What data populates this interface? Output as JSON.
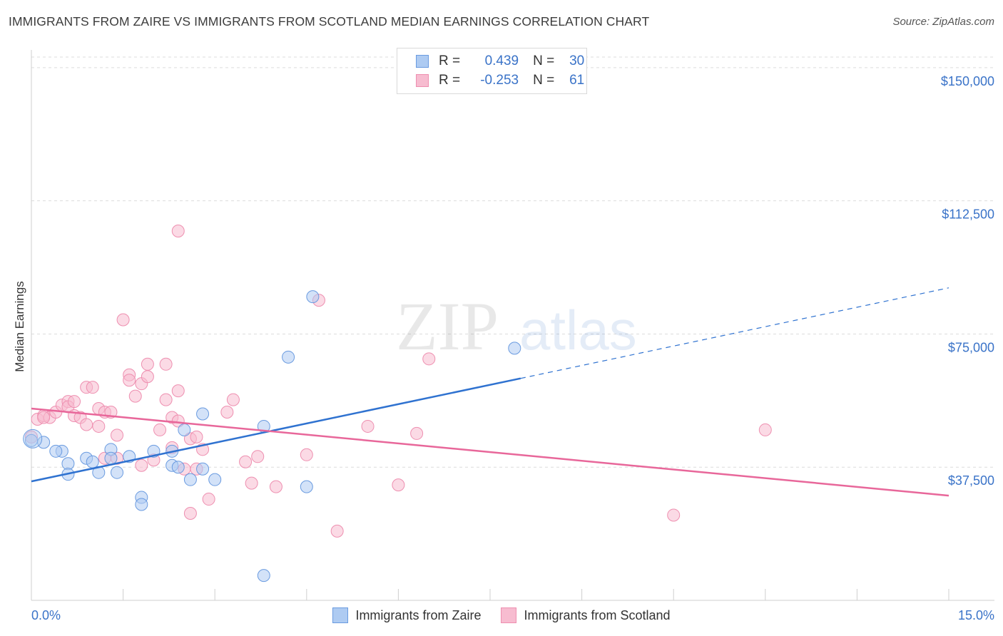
{
  "header": {
    "title": "IMMIGRANTS FROM ZAIRE VS IMMIGRANTS FROM SCOTLAND MEDIAN EARNINGS CORRELATION CHART",
    "source": "Source: ZipAtlas.com"
  },
  "watermark": {
    "zip": "ZIP",
    "atlas": "atlas"
  },
  "legend": {
    "zaire": {
      "r_label": "R =",
      "r_value": "0.439",
      "n_label": "N =",
      "n_value": "30"
    },
    "scotland": {
      "r_label": "R =",
      "r_value": "-0.253",
      "n_label": "N =",
      "n_value": "61"
    }
  },
  "colors": {
    "zaire_fill": "#aecbf2",
    "zaire_stroke": "#6a9be0",
    "zaire_line": "#2f72d0",
    "scotland_fill": "#f7bcd0",
    "scotland_stroke": "#ee8fb0",
    "scotland_line": "#e8679a",
    "grid": "#dcdcdc",
    "tick_label": "#3a73c8"
  },
  "chart_data": {
    "type": "scatter",
    "title": "IMMIGRANTS FROM ZAIRE VS IMMIGRANTS FROM SCOTLAND MEDIAN EARNINGS CORRELATION CHART",
    "xlabel": "",
    "ylabel": "Median Earnings",
    "xlim": [
      0,
      15
    ],
    "ylim": [
      0,
      155000
    ],
    "x_tick_labels": {
      "left": "0.0%",
      "right": "15.0%"
    },
    "y_ticks": [
      37500,
      75000,
      112500,
      150000
    ],
    "y_tick_labels": [
      "$37,500",
      "$75,000",
      "$112,500",
      "$150,000"
    ],
    "series": [
      {
        "name": "Immigrants from Zaire",
        "r": 0.439,
        "n": 30,
        "trend": {
          "x0": 0,
          "y0": 33500,
          "x1": 8,
          "y1": 62500,
          "x_end": 15,
          "y_end": 88000
        },
        "points": [
          [
            0.0,
            45000
          ],
          [
            0.5,
            42000
          ],
          [
            0.6,
            38500
          ],
          [
            0.9,
            40000
          ],
          [
            1.0,
            39000
          ],
          [
            0.4,
            42000
          ],
          [
            1.1,
            36000
          ],
          [
            0.6,
            35500
          ],
          [
            1.3,
            42500
          ],
          [
            1.3,
            40000
          ],
          [
            1.4,
            36000
          ],
          [
            1.6,
            40500
          ],
          [
            1.8,
            29000
          ],
          [
            1.8,
            27000
          ],
          [
            2.0,
            42000
          ],
          [
            2.3,
            42000
          ],
          [
            2.3,
            38000
          ],
          [
            2.4,
            37500
          ],
          [
            2.5,
            48000
          ],
          [
            2.6,
            34000
          ],
          [
            2.8,
            52500
          ],
          [
            2.8,
            37000
          ],
          [
            3.0,
            34000
          ],
          [
            3.8,
            49000
          ],
          [
            4.2,
            68500
          ],
          [
            4.5,
            32000
          ],
          [
            4.6,
            85500
          ],
          [
            3.8,
            7000
          ],
          [
            7.9,
            71000
          ],
          [
            0.2,
            44500
          ]
        ]
      },
      {
        "name": "Immigrants from Scotland",
        "r": -0.253,
        "n": 61,
        "trend": {
          "x0": 0,
          "y0": 54000,
          "x1": 15,
          "y1": 29500
        },
        "points": [
          [
            0.0,
            46000
          ],
          [
            0.1,
            51000
          ],
          [
            0.2,
            52000
          ],
          [
            0.3,
            51500
          ],
          [
            0.4,
            53000
          ],
          [
            0.5,
            55000
          ],
          [
            0.6,
            56000
          ],
          [
            0.6,
            54500
          ],
          [
            0.7,
            52000
          ],
          [
            0.7,
            56000
          ],
          [
            0.8,
            51500
          ],
          [
            0.9,
            60000
          ],
          [
            1.0,
            60000
          ],
          [
            1.1,
            54000
          ],
          [
            1.1,
            49000
          ],
          [
            1.2,
            53000
          ],
          [
            1.3,
            53000
          ],
          [
            1.4,
            46500
          ],
          [
            1.5,
            79000
          ],
          [
            1.6,
            63500
          ],
          [
            1.6,
            62000
          ],
          [
            1.7,
            57500
          ],
          [
            1.8,
            61000
          ],
          [
            1.8,
            38000
          ],
          [
            1.9,
            66500
          ],
          [
            1.9,
            63000
          ],
          [
            2.0,
            39500
          ],
          [
            2.1,
            48000
          ],
          [
            2.2,
            66500
          ],
          [
            2.2,
            56500
          ],
          [
            2.3,
            51500
          ],
          [
            2.4,
            59000
          ],
          [
            2.4,
            50500
          ],
          [
            2.6,
            45500
          ],
          [
            2.6,
            24500
          ],
          [
            2.7,
            46000
          ],
          [
            2.7,
            37000
          ],
          [
            2.8,
            42500
          ],
          [
            2.9,
            28500
          ],
          [
            2.5,
            37000
          ],
          [
            2.3,
            43000
          ],
          [
            3.2,
            53000
          ],
          [
            3.3,
            56500
          ],
          [
            3.5,
            39000
          ],
          [
            3.6,
            33000
          ],
          [
            3.7,
            40500
          ],
          [
            4.0,
            32000
          ],
          [
            4.5,
            41000
          ],
          [
            4.7,
            84500
          ],
          [
            5.0,
            19500
          ],
          [
            5.5,
            49000
          ],
          [
            6.0,
            32500
          ],
          [
            6.3,
            47000
          ],
          [
            6.5,
            68000
          ],
          [
            2.4,
            104000
          ],
          [
            1.4,
            40000
          ],
          [
            0.9,
            49500
          ],
          [
            1.2,
            40000
          ],
          [
            12.0,
            48000
          ],
          [
            10.5,
            24000
          ],
          [
            0.2,
            51500
          ]
        ]
      }
    ]
  },
  "bottom_legend": {
    "zaire": "Immigrants from Zaire",
    "scotland": "Immigrants from Scotland"
  }
}
